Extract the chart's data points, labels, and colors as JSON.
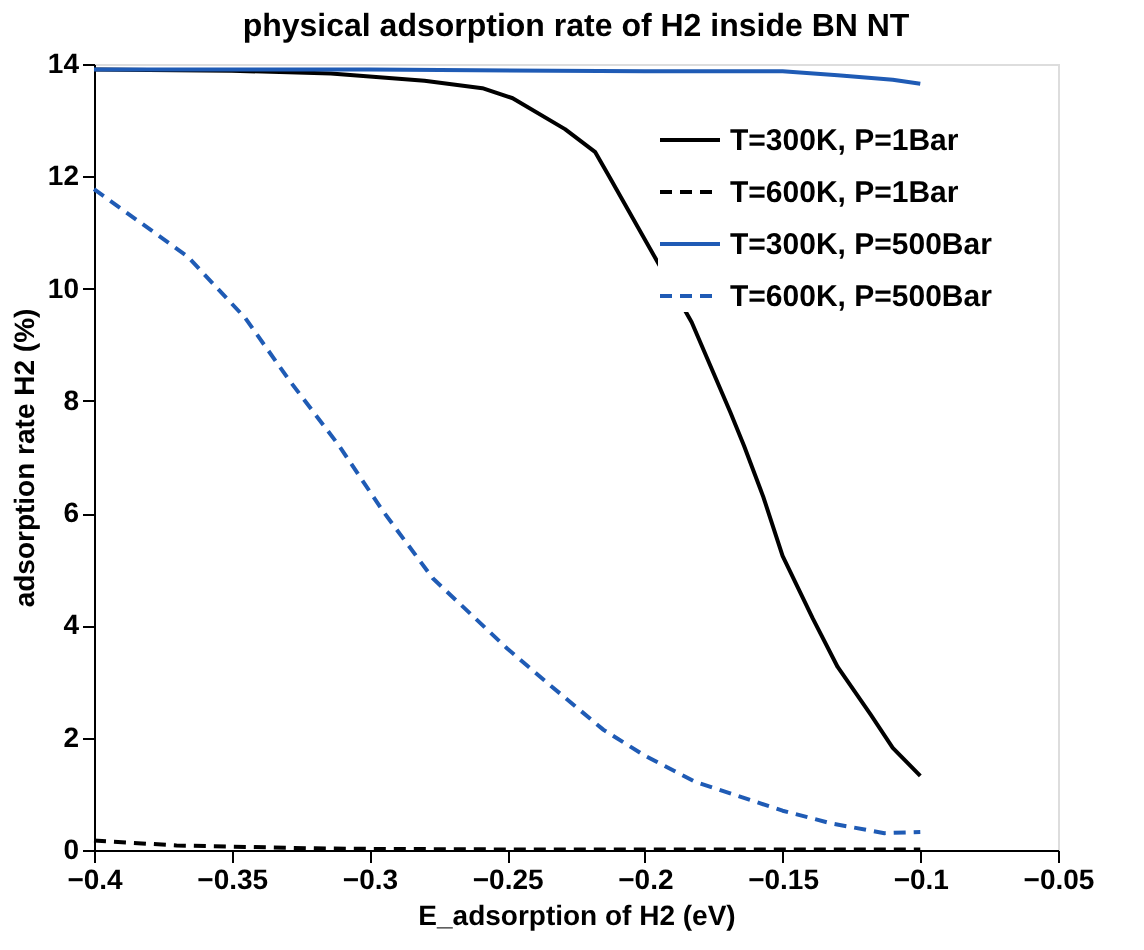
{
  "chart_data": {
    "type": "line",
    "title": "physical adsorption rate of H2 inside BN NT",
    "xlabel": "E_adsorption of H2 (eV)",
    "ylabel": "adsorption rate H2 (%)",
    "xlim": [
      -0.4,
      -0.05
    ],
    "xticks": [
      -0.4,
      -0.35,
      -0.3,
      -0.25,
      -0.2,
      -0.15,
      -0.1,
      -0.05
    ],
    "ylim": [
      0,
      14
    ],
    "yticks": [
      0,
      2,
      4,
      6,
      8,
      10,
      12,
      14
    ],
    "grid": false,
    "legend": "top right",
    "marker": "none",
    "series": [
      {
        "name": "T=300K, P=1Bar",
        "color": "#000000",
        "line_style": "solid",
        "x": [
          -0.4,
          -0.35,
          -0.314,
          -0.28,
          -0.259,
          -0.248,
          -0.229,
          -0.218,
          -0.213,
          -0.183,
          -0.169,
          -0.164,
          -0.157,
          -0.15,
          -0.139,
          -0.13,
          -0.118,
          -0.11,
          -0.1
        ],
        "values": [
          13.9,
          13.88,
          13.83,
          13.7,
          13.57,
          13.39,
          12.84,
          12.43,
          12.0,
          9.4,
          7.8,
          7.2,
          6.29,
          5.24,
          4.12,
          3.26,
          2.41,
          1.82,
          1.32
        ]
      },
      {
        "name": "T=600K, P=1Bar",
        "color": "#000000",
        "line_style": "dashed",
        "x": [
          -0.4,
          -0.37,
          -0.32,
          -0.3,
          -0.25,
          -0.2,
          -0.15,
          -0.1
        ],
        "values": [
          0.17,
          0.08,
          0.03,
          0.02,
          0.01,
          0.01,
          0.01,
          0.01
        ]
      },
      {
        "name": "T=300K, P=500Bar",
        "color": "#1f5bb5",
        "line_style": "solid",
        "x": [
          -0.4,
          -0.3,
          -0.2,
          -0.15,
          -0.13,
          -0.11,
          -0.1
        ],
        "values": [
          13.9,
          13.9,
          13.87,
          13.87,
          13.8,
          13.72,
          13.65
        ]
      },
      {
        "name": "T=600K, P=500Bar",
        "color": "#1f5bb5",
        "line_style": "dashed",
        "x": [
          -0.4,
          -0.366,
          -0.345,
          -0.329,
          -0.311,
          -0.295,
          -0.277,
          -0.25,
          -0.236,
          -0.215,
          -0.2,
          -0.182,
          -0.15,
          -0.132,
          -0.113,
          -0.1
        ],
        "values": [
          11.77,
          10.57,
          9.47,
          8.36,
          7.2,
          6.03,
          4.84,
          3.59,
          3.0,
          2.14,
          1.68,
          1.22,
          0.7,
          0.47,
          0.3,
          0.32
        ]
      }
    ]
  }
}
